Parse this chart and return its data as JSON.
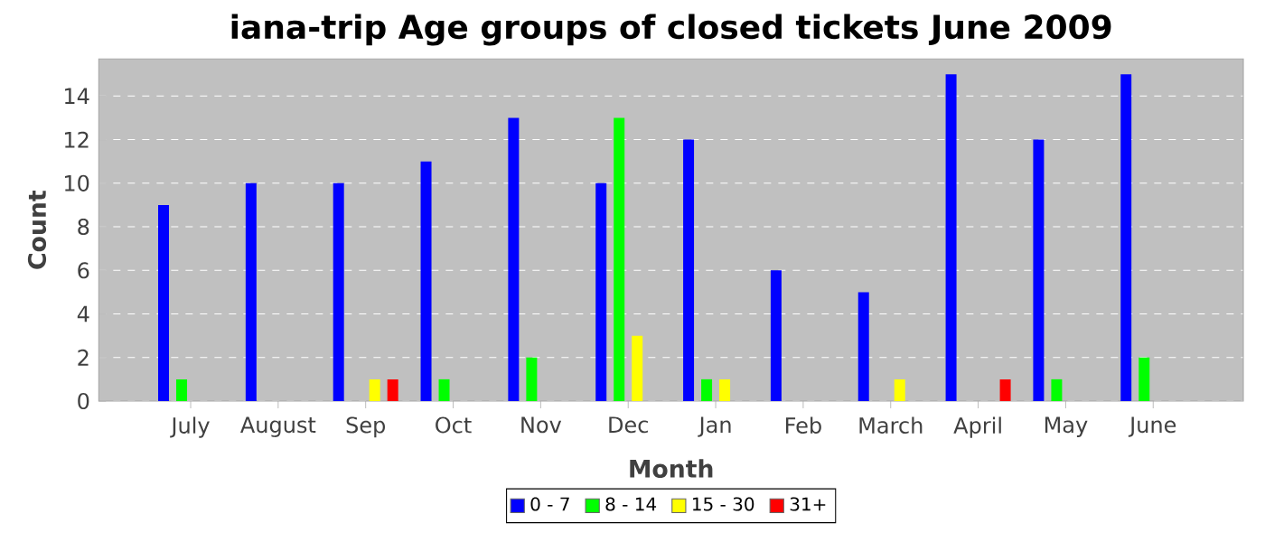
{
  "chart_data": {
    "type": "bar",
    "title": "iana-trip Age groups of closed tickets June 2009",
    "xlabel": "Month",
    "ylabel": "Count",
    "categories": [
      "July",
      "August",
      "Sep",
      "Oct",
      "Nov",
      "Dec",
      "Jan",
      "Feb",
      "March",
      "April",
      "May",
      "June"
    ],
    "series": [
      {
        "name": "0 - 7",
        "color": "#0000ff",
        "values": [
          9,
          10,
          10,
          11,
          13,
          10,
          12,
          6,
          5,
          15,
          12,
          15
        ]
      },
      {
        "name": "8 - 14",
        "color": "#00ff00",
        "values": [
          1,
          0,
          0,
          1,
          2,
          13,
          1,
          0,
          0,
          0,
          1,
          2
        ]
      },
      {
        "name": "15 - 30",
        "color": "#ffff00",
        "values": [
          0,
          0,
          1,
          0,
          0,
          3,
          1,
          0,
          1,
          0,
          0,
          0
        ]
      },
      {
        "name": "31+",
        "color": "#ff0000",
        "values": [
          0,
          0,
          1,
          0,
          0,
          0,
          0,
          0,
          0,
          1,
          0,
          0
        ]
      }
    ],
    "ylim": [
      0,
      15.7
    ],
    "yticks": [
      0,
      2,
      4,
      6,
      8,
      10,
      12,
      14
    ],
    "grid": "y",
    "legend": "bottom"
  }
}
